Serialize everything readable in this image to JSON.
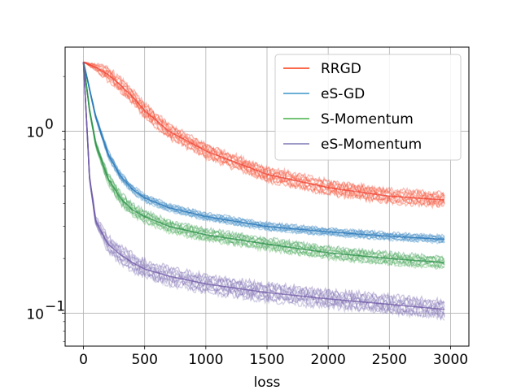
{
  "chart_data": {
    "type": "line",
    "title": "",
    "xlabel": "loss",
    "ylabel": "",
    "xlim": [
      -150,
      3150
    ],
    "ylim": [
      0.066,
      2.9
    ],
    "yscale": "log",
    "grid": true,
    "legend_position": "top-right",
    "x_ticks": [
      0,
      500,
      1000,
      1500,
      2000,
      2500,
      3000
    ],
    "x_tick_labels": [
      "0",
      "500",
      "1000",
      "1500",
      "2000",
      "2500",
      "3000"
    ],
    "y_ticks": [
      0.1,
      1
    ],
    "y_tick_labels_base": [
      "10",
      "10"
    ],
    "y_tick_labels_exp": [
      "−1",
      "0"
    ],
    "x": [
      0,
      50,
      100,
      200,
      300,
      400,
      500,
      700,
      1000,
      1500,
      2000,
      2500,
      2950
    ],
    "series": [
      {
        "name": "RRGD",
        "line_color": "#fb6a4a",
        "band_color": "#ef3b2c",
        "values": [
          2.4,
          2.32,
          2.25,
          2.05,
          1.8,
          1.55,
          1.3,
          1.0,
          0.78,
          0.58,
          0.49,
          0.44,
          0.42
        ],
        "spread": 0.13
      },
      {
        "name": "eS-GD",
        "line_color": "#6baed6",
        "band_color": "#2171b5",
        "values": [
          2.4,
          1.7,
          1.2,
          0.75,
          0.57,
          0.48,
          0.43,
          0.38,
          0.34,
          0.3,
          0.28,
          0.265,
          0.255
        ],
        "spread": 0.07
      },
      {
        "name": "S-Momentum",
        "line_color": "#74c476",
        "band_color": "#238b45",
        "values": [
          2.4,
          1.3,
          0.85,
          0.55,
          0.43,
          0.37,
          0.34,
          0.3,
          0.27,
          0.24,
          0.215,
          0.2,
          0.19
        ],
        "spread": 0.11
      },
      {
        "name": "eS-Momentum",
        "line_color": "#9e9ac8",
        "band_color": "#6a51a3",
        "values": [
          2.4,
          0.55,
          0.32,
          0.24,
          0.21,
          0.19,
          0.175,
          0.16,
          0.145,
          0.13,
          0.12,
          0.112,
          0.105
        ],
        "spread": 0.16
      }
    ]
  }
}
